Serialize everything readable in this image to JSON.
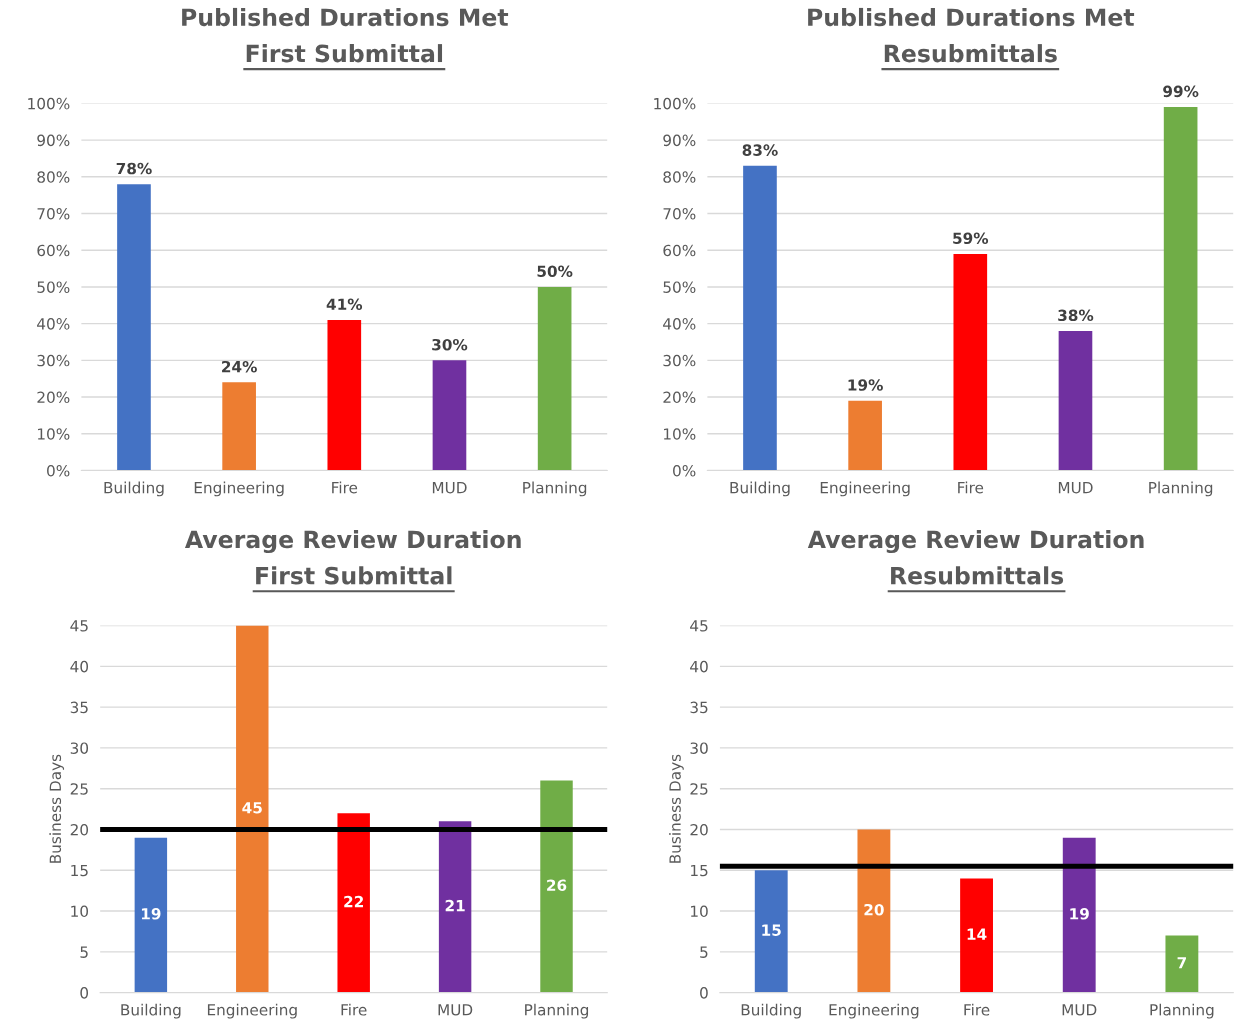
{
  "chart_data": [
    {
      "type": "bar",
      "title": "Published Durations Met",
      "subtitle": "First Submittal",
      "categories": [
        "Building",
        "Engineering",
        "Fire",
        "MUD",
        "Planning"
      ],
      "values": [
        78,
        24,
        41,
        30,
        50
      ],
      "colors": [
        "#4472c4",
        "#ed7d31",
        "#ff0000",
        "#7030a0",
        "#70ad47"
      ],
      "value_labels": [
        "78%",
        "24%",
        "41%",
        "30%",
        "50%"
      ],
      "ylim": [
        0,
        100
      ],
      "yticks": [
        {
          "value": 0,
          "label": "0%"
        },
        {
          "value": 10,
          "label": "10%"
        },
        {
          "value": 20,
          "label": "20%"
        },
        {
          "value": 30,
          "label": "30%"
        },
        {
          "value": 40,
          "label": "40%"
        },
        {
          "value": 50,
          "label": "50%"
        },
        {
          "value": 60,
          "label": "60%"
        },
        {
          "value": 70,
          "label": "70%"
        },
        {
          "value": 80,
          "label": "80%"
        },
        {
          "value": 90,
          "label": "90%"
        },
        {
          "value": 100,
          "label": "100%"
        }
      ],
      "grid": "y",
      "legend": false
    },
    {
      "type": "bar",
      "title": "Published Durations Met",
      "subtitle": "Resubmittals",
      "categories": [
        "Building",
        "Engineering",
        "Fire",
        "MUD",
        "Planning"
      ],
      "values": [
        83,
        19,
        59,
        38,
        99
      ],
      "colors": [
        "#4472c4",
        "#ed7d31",
        "#ff0000",
        "#7030a0",
        "#70ad47"
      ],
      "value_labels": [
        "83%",
        "19%",
        "59%",
        "38%",
        "99%"
      ],
      "ylim": [
        0,
        100
      ],
      "yticks": [
        {
          "value": 0,
          "label": "0%"
        },
        {
          "value": 10,
          "label": "10%"
        },
        {
          "value": 20,
          "label": "20%"
        },
        {
          "value": 30,
          "label": "30%"
        },
        {
          "value": 40,
          "label": "40%"
        },
        {
          "value": 50,
          "label": "50%"
        },
        {
          "value": 60,
          "label": "60%"
        },
        {
          "value": 70,
          "label": "70%"
        },
        {
          "value": 80,
          "label": "80%"
        },
        {
          "value": 90,
          "label": "90%"
        },
        {
          "value": 100,
          "label": "100%"
        }
      ],
      "grid": "y",
      "legend": false
    },
    {
      "type": "bar",
      "title": "Average Review Duration",
      "subtitle": "First Submittal",
      "ylabel": "Business Days",
      "categories": [
        "Building",
        "Engineering",
        "Fire",
        "MUD",
        "Planning"
      ],
      "values": [
        19,
        45,
        22,
        21,
        26
      ],
      "colors": [
        "#4472c4",
        "#ed7d31",
        "#ff0000",
        "#7030a0",
        "#70ad47"
      ],
      "data_labels": true,
      "ylim": [
        0,
        45
      ],
      "yticks": [
        0,
        5,
        10,
        15,
        20,
        25,
        30,
        35,
        40,
        45
      ],
      "grid": "y",
      "legend": false,
      "ref_lines": [
        {
          "axis": "y",
          "value": 20,
          "color": "#000000"
        }
      ]
    },
    {
      "type": "bar",
      "title": "Average Review Duration",
      "subtitle": "Resubmittals",
      "ylabel": "Business Days",
      "categories": [
        "Building",
        "Engineering",
        "Fire",
        "MUD",
        "Planning"
      ],
      "values": [
        15,
        20,
        14,
        19,
        7
      ],
      "colors": [
        "#4472c4",
        "#ed7d31",
        "#ff0000",
        "#7030a0",
        "#70ad47"
      ],
      "data_labels": true,
      "ylim": [
        0,
        45
      ],
      "yticks": [
        0,
        5,
        10,
        15,
        20,
        25,
        30,
        35,
        40,
        45
      ],
      "grid": "y",
      "legend": false,
      "ref_lines": [
        {
          "axis": "y",
          "value": 15.5,
          "color": "#000000"
        }
      ]
    }
  ]
}
